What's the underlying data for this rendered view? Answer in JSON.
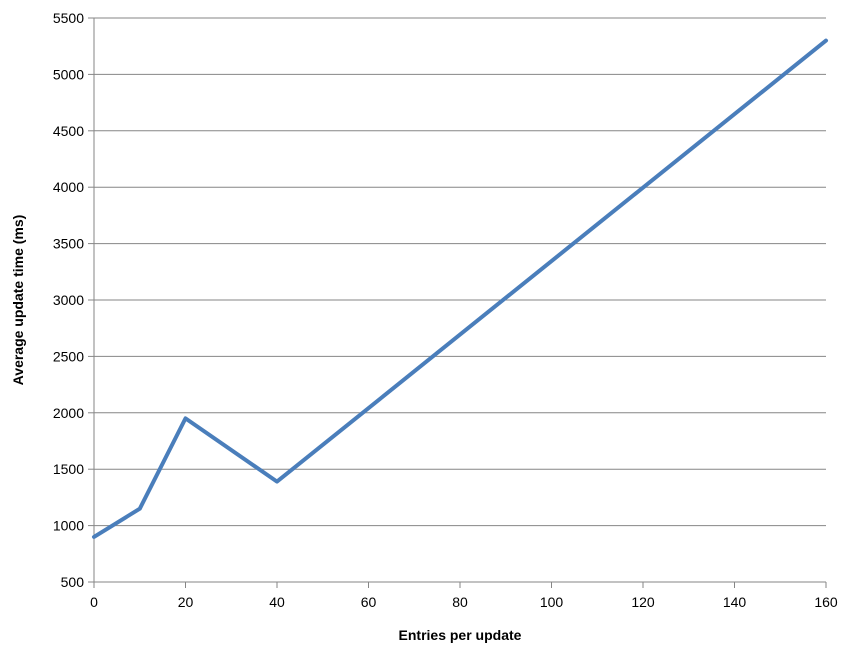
{
  "chart_data": {
    "type": "line",
    "title": "",
    "xlabel": "Entries per update",
    "ylabel": "Average update time (ms)",
    "xlim": [
      0,
      160
    ],
    "ylim": [
      500,
      5500
    ],
    "x_ticks": [
      0,
      20,
      40,
      60,
      80,
      100,
      120,
      140,
      160
    ],
    "y_ticks": [
      500,
      1000,
      1500,
      2000,
      2500,
      3000,
      3500,
      4000,
      4500,
      5000,
      5500
    ],
    "grid": true,
    "legend": "none",
    "series": [
      {
        "color": "#4a7ebb",
        "x": [
          0,
          10,
          20,
          40,
          160
        ],
        "y": [
          900,
          1150,
          1950,
          1390,
          5300
        ]
      }
    ]
  }
}
